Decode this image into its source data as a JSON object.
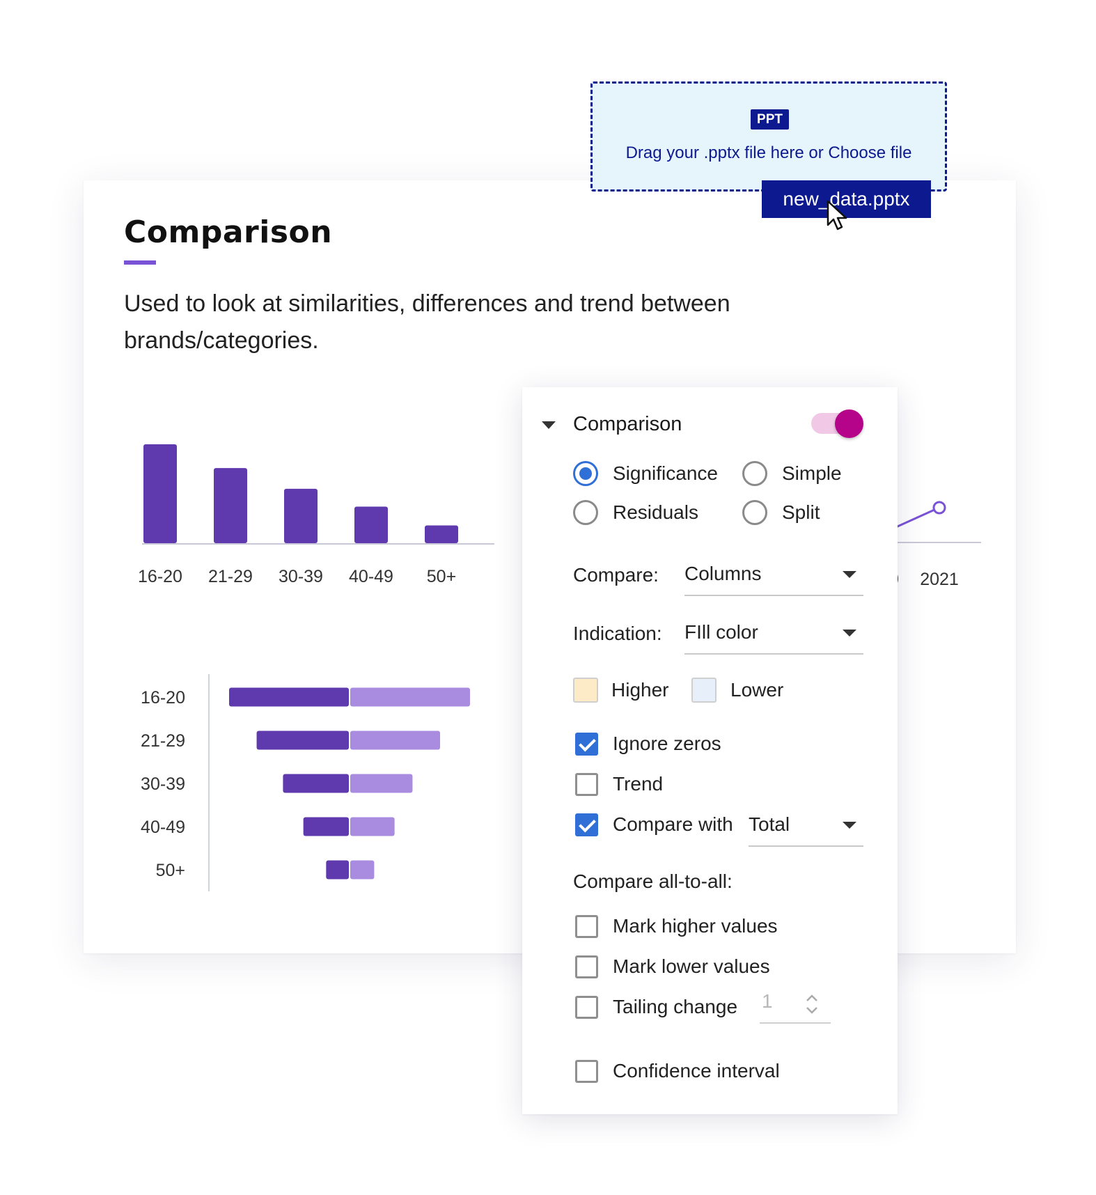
{
  "slide": {
    "title": "Comparison",
    "description": "Used to look at similarities, differences and trend between brands/categories."
  },
  "dropzone": {
    "badge": "PPT",
    "text": "Drag your .pptx file here or Choose file",
    "file_name": "new_data.pptx"
  },
  "panel": {
    "section_title": "Comparison",
    "toggle_on": true,
    "radios": [
      {
        "label": "Significance",
        "selected": true
      },
      {
        "label": "Simple",
        "selected": false
      },
      {
        "label": "Residuals",
        "selected": false
      },
      {
        "label": "Split",
        "selected": false
      }
    ],
    "compare_label": "Compare:",
    "compare_value": "Columns",
    "indication_label": "Indication:",
    "indication_value": "FIll color",
    "higher_label": "Higher",
    "lower_label": "Lower",
    "higher_color": "#fdebc8",
    "lower_color": "#e6effa",
    "ignore_zeros": {
      "label": "Ignore zeros",
      "checked": true
    },
    "trend": {
      "label": "Trend",
      "checked": false
    },
    "compare_with": {
      "label": "Compare with",
      "checked": true,
      "value": "Total"
    },
    "all_to_all_label": "Compare all-to-all:",
    "mark_higher": {
      "label": "Mark higher values",
      "checked": false
    },
    "mark_lower": {
      "label": "Mark lower values",
      "checked": false
    },
    "tailing_change": {
      "label": "Tailing change",
      "checked": false,
      "value": "1"
    },
    "confidence_interval": {
      "label": "Confidence interval",
      "checked": false
    }
  },
  "chart_data": [
    {
      "type": "bar",
      "categories": [
        "16-20",
        "21-29",
        "30-39",
        "40-49",
        "50+"
      ],
      "values": [
        100,
        76,
        55,
        37,
        18
      ],
      "color": "#5f3aae"
    },
    {
      "type": "bar",
      "orientation": "horizontal-split",
      "categories": [
        "16-20",
        "21-29",
        "30-39",
        "40-49",
        "50+"
      ],
      "series": [
        {
          "values": [
            100,
            77,
            55,
            38,
            19
          ],
          "color": "#5f3aae"
        },
        {
          "values": [
            100,
            75,
            52,
            37,
            20
          ],
          "color": "#a98ce0"
        }
      ]
    },
    {
      "type": "line",
      "x_labels": [
        "0",
        "2021"
      ],
      "points": [
        {
          "x": "2021",
          "y": 1
        }
      ],
      "color": "#7a52d6"
    }
  ]
}
